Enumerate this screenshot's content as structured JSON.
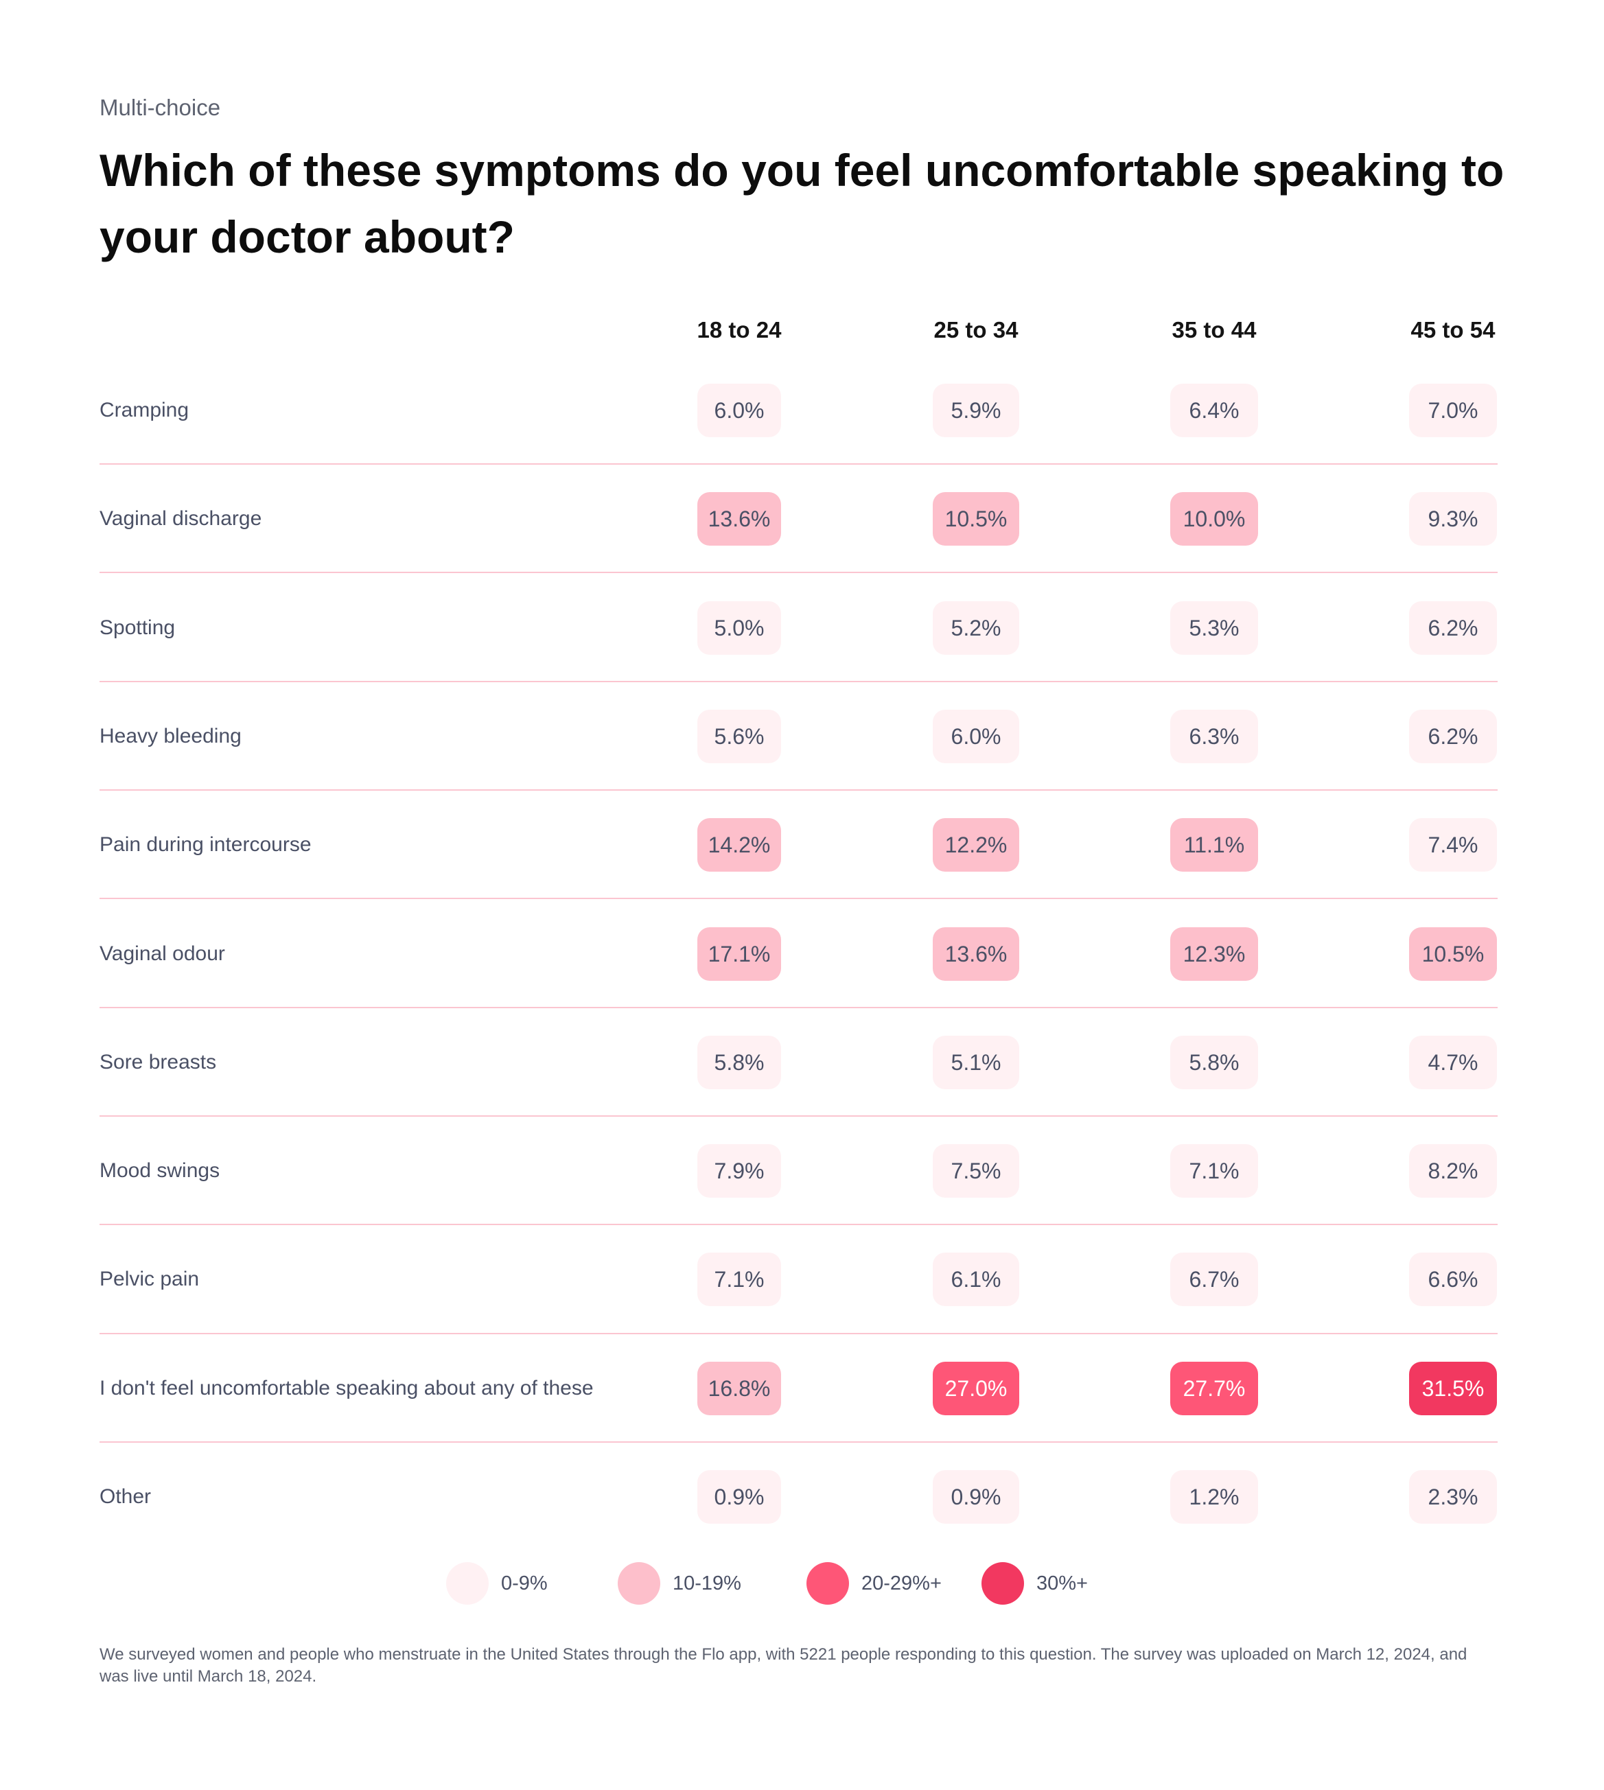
{
  "header": {
    "subtitle": "Multi-choice",
    "title": "Which of these symptoms do you feel uncomfortable speaking to your doctor about?"
  },
  "chart_data": {
    "type": "table",
    "title": "Which of these symptoms do you feel uncomfortable speaking to your doctor about?",
    "subtitle": "Multi-choice",
    "columns": [
      "18 to 24",
      "25 to 34",
      "35 to 44",
      "45 to 54"
    ],
    "rows": [
      {
        "label": "Cramping",
        "values": [
          "6.0%",
          "5.9%",
          "6.4%",
          "7.0%"
        ]
      },
      {
        "label": "Vaginal discharge",
        "values": [
          "13.6%",
          "10.5%",
          "10.0%",
          "9.3%"
        ]
      },
      {
        "label": "Spotting",
        "values": [
          "5.0%",
          "5.2%",
          "5.3%",
          "6.2%"
        ]
      },
      {
        "label": "Heavy bleeding",
        "values": [
          "5.6%",
          "6.0%",
          "6.3%",
          "6.2%"
        ]
      },
      {
        "label": "Pain during intercourse",
        "values": [
          "14.2%",
          "12.2%",
          "11.1%",
          "7.4%"
        ]
      },
      {
        "label": "Vaginal odour",
        "values": [
          "17.1%",
          "13.6%",
          "12.3%",
          "10.5%"
        ]
      },
      {
        "label": "Sore breasts",
        "values": [
          "5.8%",
          "5.1%",
          "5.8%",
          "4.7%"
        ]
      },
      {
        "label": "Mood swings",
        "values": [
          "7.9%",
          "7.5%",
          "7.1%",
          "8.2%"
        ]
      },
      {
        "label": "Pelvic pain",
        "values": [
          "7.1%",
          "6.1%",
          "6.7%",
          "6.6%"
        ]
      },
      {
        "label": "I don't feel uncomfortable speaking about any of these",
        "values": [
          "16.8%",
          "27.0%",
          "27.7%",
          "31.5%"
        ]
      },
      {
        "label": "Other",
        "values": [
          "0.9%",
          "0.9%",
          "1.2%",
          "2.3%"
        ]
      }
    ],
    "legend": [
      {
        "label": "0-9%",
        "color": "#fff1f3"
      },
      {
        "label": "10-19%",
        "color": "#fdbfcb"
      },
      {
        "label": "20-29%+",
        "color": "#fe5677"
      },
      {
        "label": "30%+",
        "color": "#f23860"
      }
    ]
  },
  "footnote": "We surveyed women and people who menstruate in the United States through the Flo app, with 5221 people responding to this question. The survey was uploaded on March 12, 2024, and was live until March 18, 2024."
}
